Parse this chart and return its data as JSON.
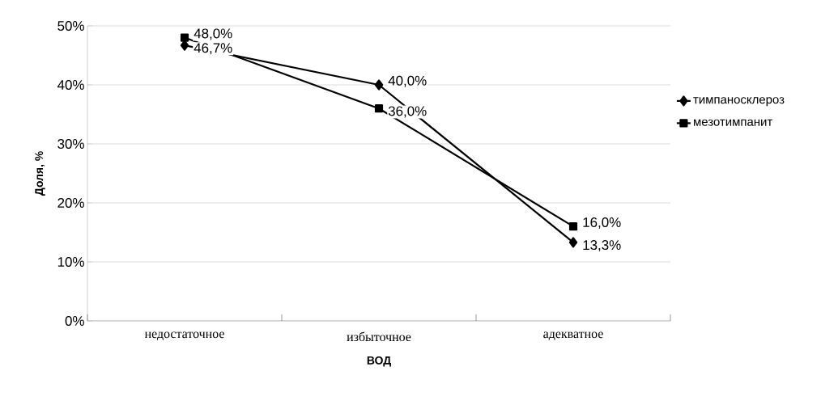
{
  "chart_data": {
    "type": "line",
    "xlabel": "ВОД",
    "ylabel": "Доля, %",
    "categories": [
      "недостаточное",
      "избыточное",
      "адекватное"
    ],
    "series": [
      {
        "name": "тимпаносклероз",
        "color": "#000000",
        "marker": "diamond",
        "values": [
          46.7,
          40.0,
          13.3
        ],
        "value_labels": [
          "46,7%",
          "40,0%",
          "13,3%"
        ]
      },
      {
        "name": "мезотимпанит",
        "color": "#000000",
        "marker": "square",
        "values": [
          48.0,
          36.0,
          16.0
        ],
        "value_labels": [
          "48,0%",
          "36,0%",
          "16,0%"
        ]
      }
    ],
    "ylim": [
      0,
      50
    ],
    "yticks": [
      {
        "value": 0,
        "label": "0%"
      },
      {
        "value": 10,
        "label": "10%"
      },
      {
        "value": 20,
        "label": "20%"
      },
      {
        "value": 30,
        "label": "30%"
      },
      {
        "value": 40,
        "label": "40%"
      },
      {
        "value": 50,
        "label": "50%"
      }
    ],
    "grid": "y",
    "legend": "right",
    "line_style": "solid"
  }
}
